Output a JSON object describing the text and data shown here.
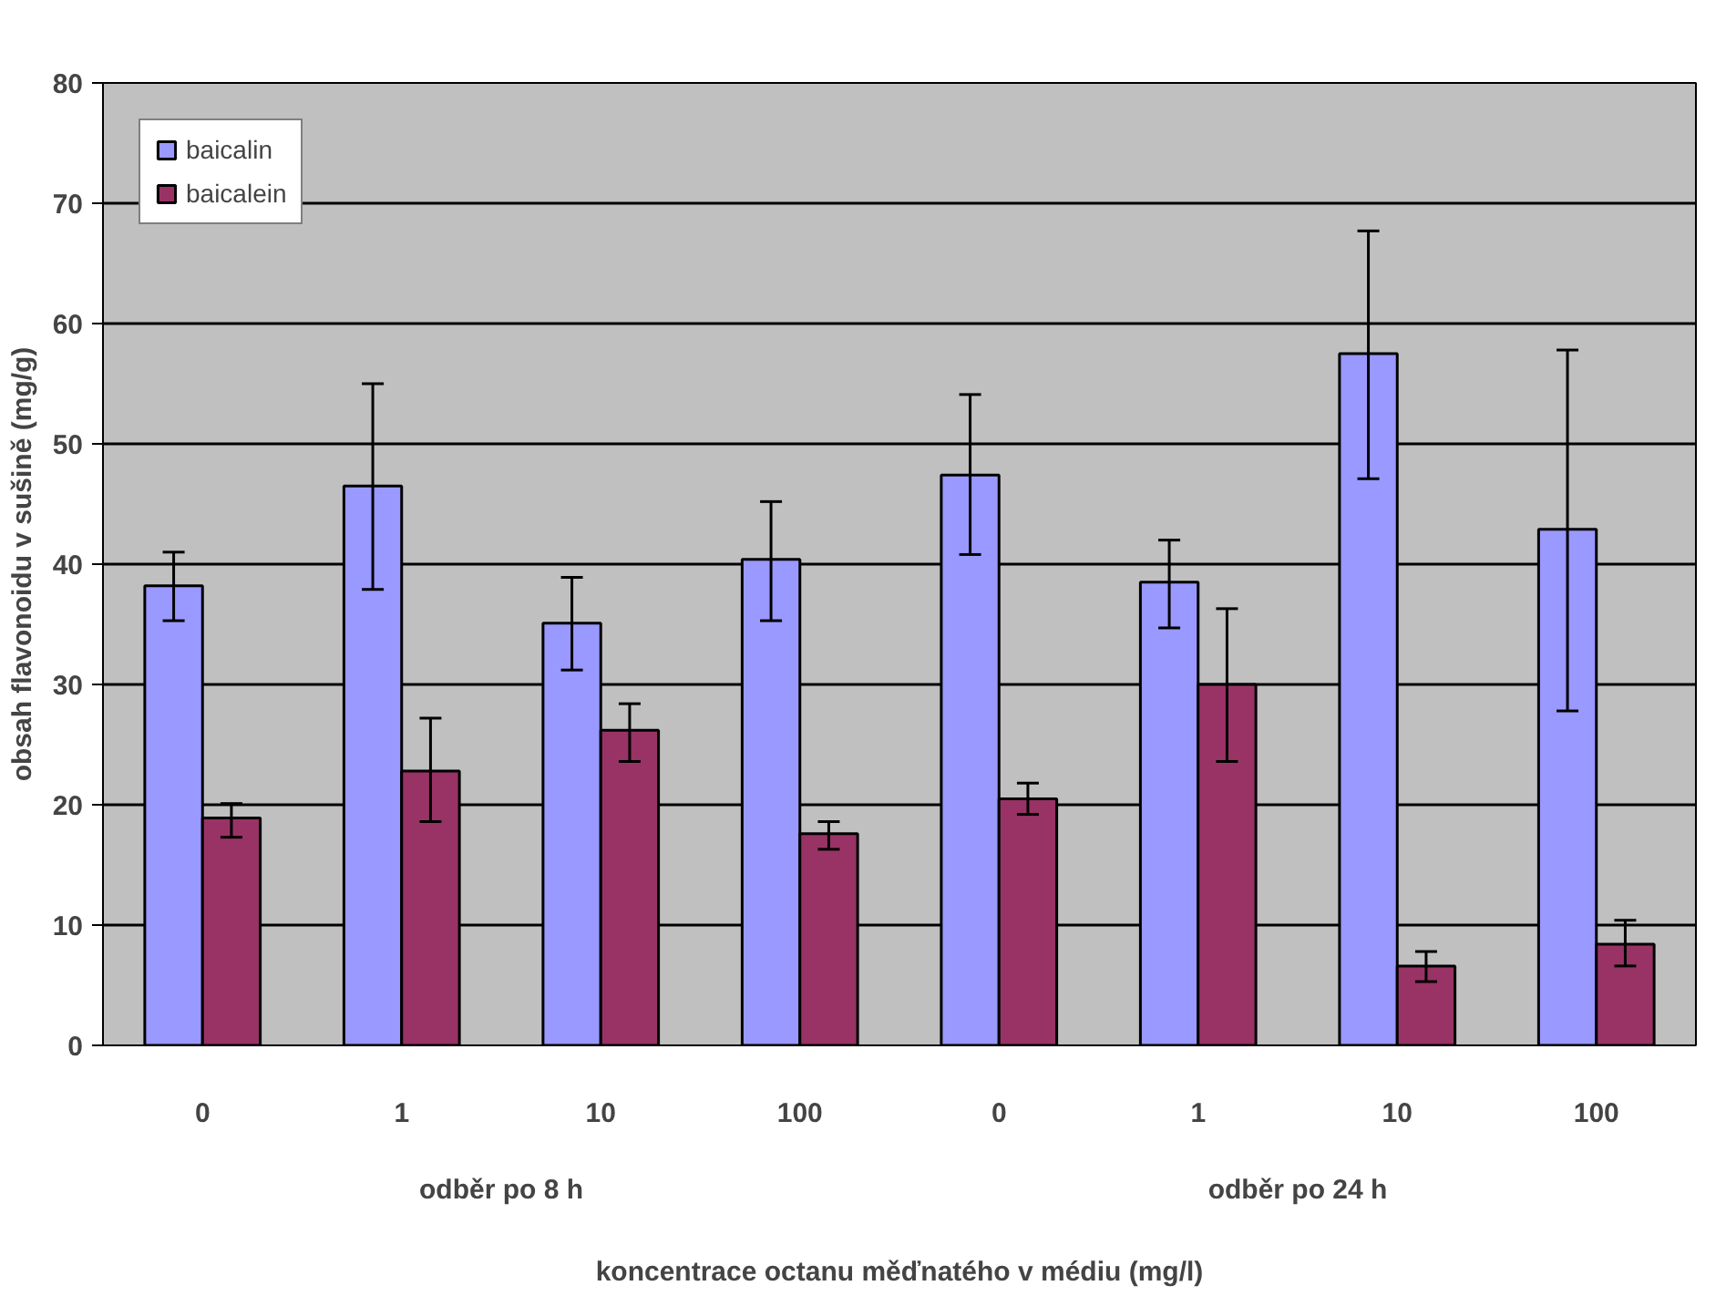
{
  "chart_data": {
    "type": "bar",
    "xlabel": "koncentrace octanu měďnatého v médiu (mg/l)",
    "ylabel": "obsah flavonoidu v sušině (mg/g)",
    "categories": [
      "0",
      "1",
      "10",
      "100",
      "0",
      "1",
      "10",
      "100"
    ],
    "annotations": [
      "odběr po 8 h",
      "odběr po 24 h"
    ],
    "series": [
      {
        "name": "baicalin",
        "color": "#9999ff",
        "values": [
          38.2,
          46.5,
          35.1,
          40.4,
          47.4,
          38.5,
          57.5,
          42.9
        ],
        "errors": [
          [
            35.3,
            41.0
          ],
          [
            37.9,
            55.0
          ],
          [
            31.2,
            38.9
          ],
          [
            35.3,
            45.2
          ],
          [
            40.8,
            54.1
          ],
          [
            34.7,
            42.0
          ],
          [
            47.1,
            67.7
          ],
          [
            27.8,
            57.8
          ]
        ]
      },
      {
        "name": "baicalein",
        "color": "#993366",
        "values": [
          18.9,
          22.8,
          26.2,
          17.6,
          20.5,
          30.0,
          6.6,
          8.4
        ],
        "errors": [
          [
            17.3,
            20.1
          ],
          [
            18.6,
            27.2
          ],
          [
            23.6,
            28.4
          ],
          [
            16.3,
            18.6
          ],
          [
            19.2,
            21.8
          ],
          [
            23.6,
            36.3
          ],
          [
            5.3,
            7.8
          ],
          [
            6.6,
            10.4
          ]
        ]
      }
    ],
    "ylim": [
      0,
      80
    ],
    "yticks": [
      0,
      10,
      20,
      30,
      40,
      50,
      60,
      70,
      80
    ],
    "grid": "y",
    "legend": "top left"
  }
}
